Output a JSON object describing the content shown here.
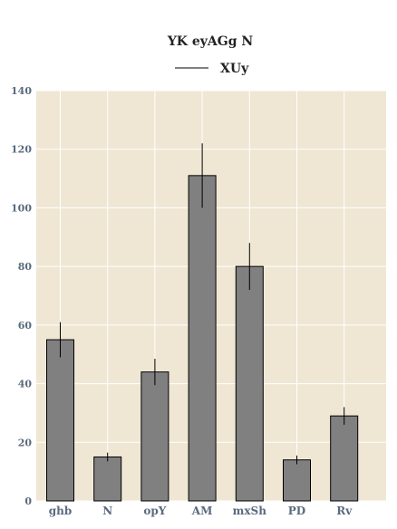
{
  "chart_data": {
    "type": "bar",
    "title": "YK eyAGg N",
    "categories": [
      "ghb",
      "N",
      "opY",
      "AM",
      "mxSh",
      "PD",
      "Rv"
    ],
    "series": [
      {
        "name": "XUy",
        "values": [
          55,
          15,
          44,
          111,
          80,
          14,
          29
        ],
        "error": [
          6,
          1.5,
          4.5,
          11,
          8,
          1.5,
          3
        ]
      }
    ],
    "ylim": [
      0,
      140
    ],
    "yticks": [
      0,
      20,
      40,
      60,
      80,
      100,
      120,
      140
    ],
    "grid": true,
    "legend_position": "top-center",
    "colors": {
      "plot_background": "#efe7d4",
      "grid": "#ffffff",
      "bar_fill": "#808080",
      "bar_edge": "#000000",
      "tick_label": "#5a6a7e",
      "error_bar": "#000000"
    }
  }
}
